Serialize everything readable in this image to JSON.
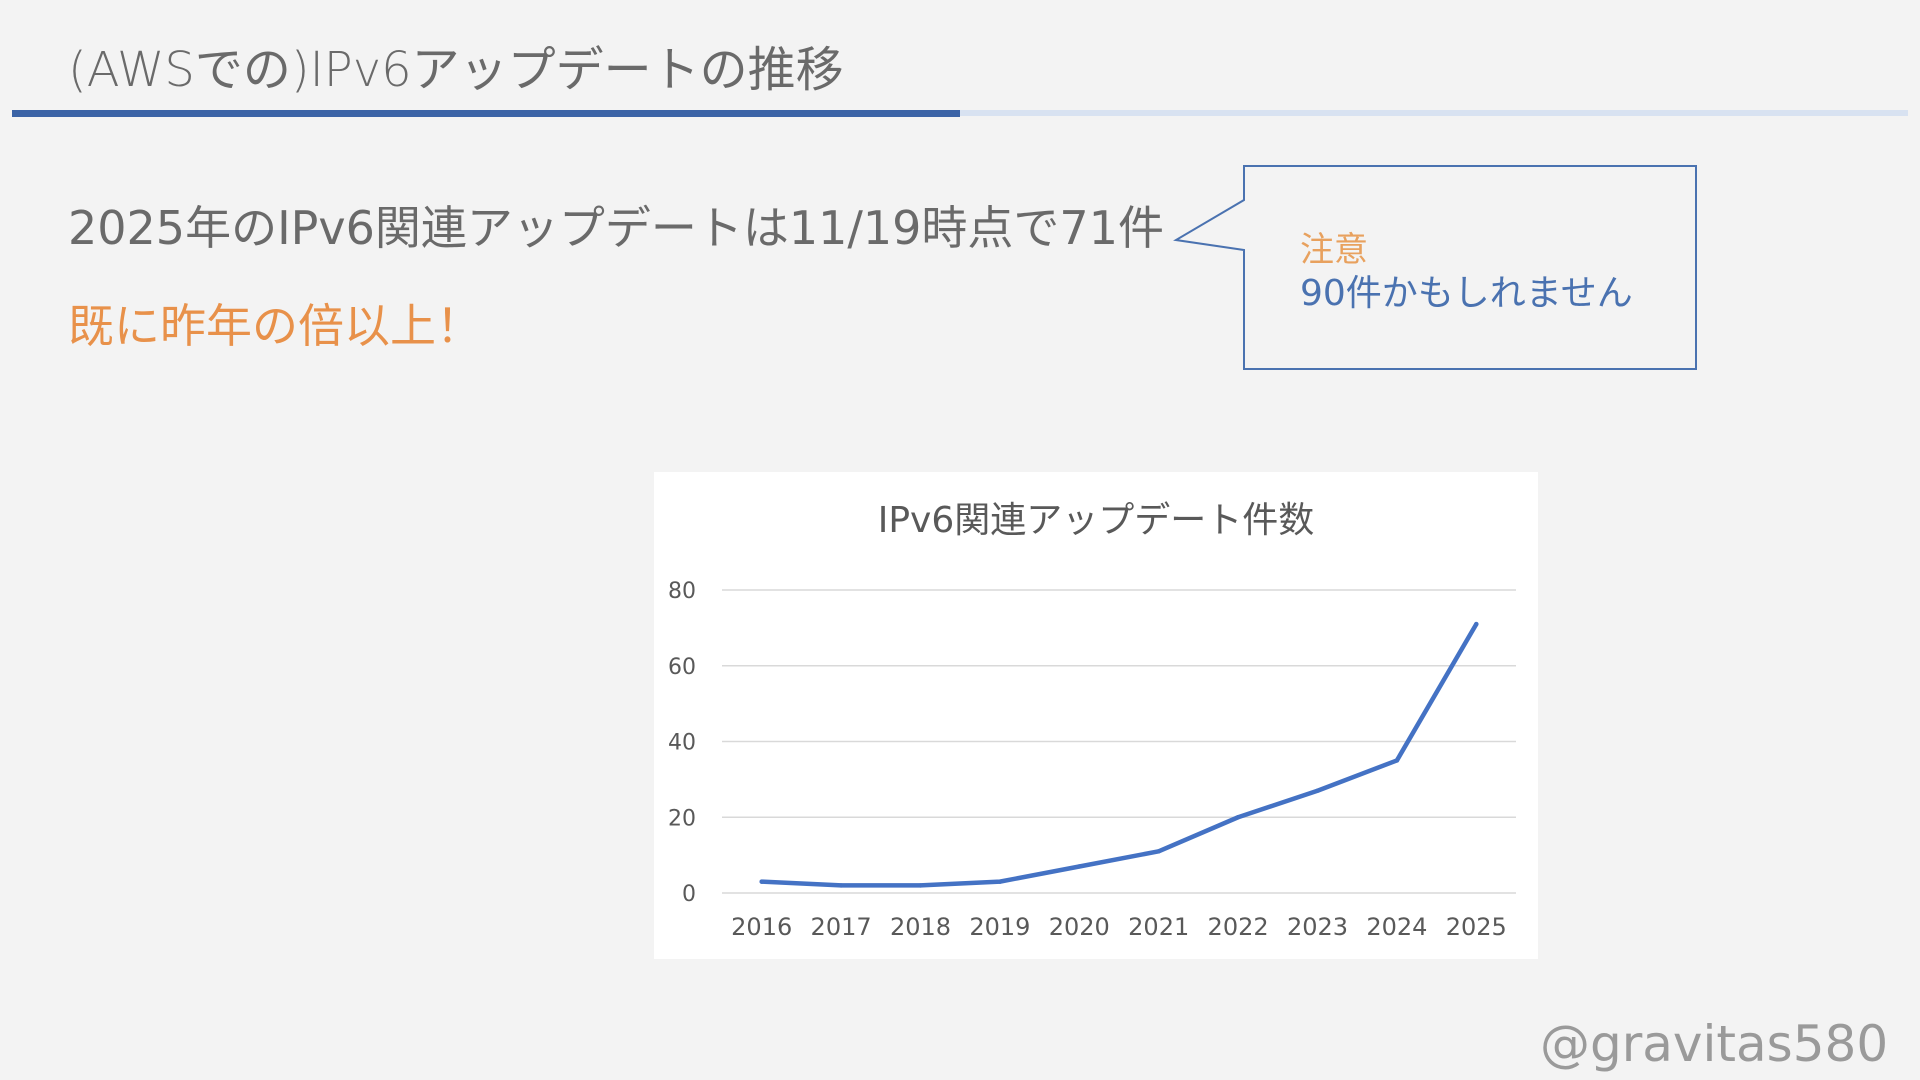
{
  "slide": {
    "title": "(AWSでの)IPv6アップデートの推移",
    "headline": "2025年のIPv6関連アップデートは11/19時点で71件",
    "highlight": "既に昨年の倍以上！",
    "callout": {
      "label": "注意",
      "body": "90件かもしれません"
    },
    "watermark": "@gravitas580"
  },
  "colors": {
    "accent": "#3b63a6",
    "accent_light": "#d8e2f1",
    "highlight": "#e8914a",
    "callout_label": "#e8a15e",
    "series": "#4472c4"
  },
  "chart_data": {
    "type": "line",
    "title": "IPv6関連アップデート件数",
    "categories": [
      "2016",
      "2017",
      "2018",
      "2019",
      "2020",
      "2021",
      "2022",
      "2023",
      "2024",
      "2025"
    ],
    "series": [
      {
        "values": [
          3,
          2,
          2,
          3,
          7,
          11,
          20,
          27,
          35,
          71
        ]
      }
    ],
    "ylim": [
      0,
      80
    ],
    "yticks": [
      0,
      20,
      40,
      60,
      80
    ],
    "grid": true,
    "legend": "none"
  }
}
